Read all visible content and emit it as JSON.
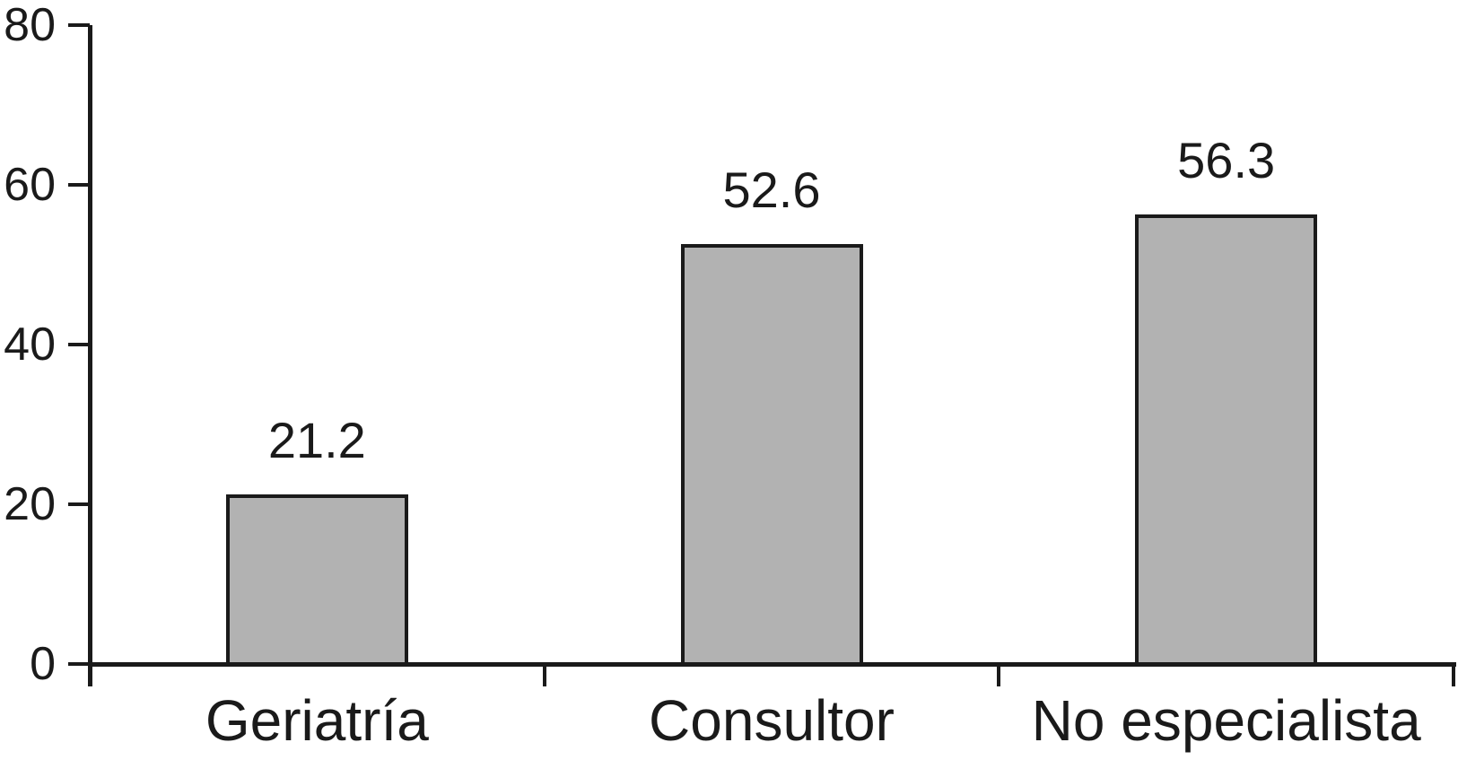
{
  "chart_data": {
    "type": "bar",
    "title": "",
    "categories": [
      "Geriatría",
      "Consultor",
      "No especialista"
    ],
    "values": [
      21.2,
      52.6,
      56.3
    ],
    "yticks": [
      0,
      20,
      40,
      60,
      80
    ],
    "ylim": [
      0,
      80
    ],
    "xlabel": "",
    "ylabel": "",
    "grid": false,
    "legend": false,
    "data_labels_shown": true,
    "colors": {
      "bar_fill": "#b2b2b2",
      "bar_border": "#1a1a1a",
      "axis": "#1a1a1a",
      "text": "#1a1a1a",
      "background": "#ffffff"
    }
  }
}
